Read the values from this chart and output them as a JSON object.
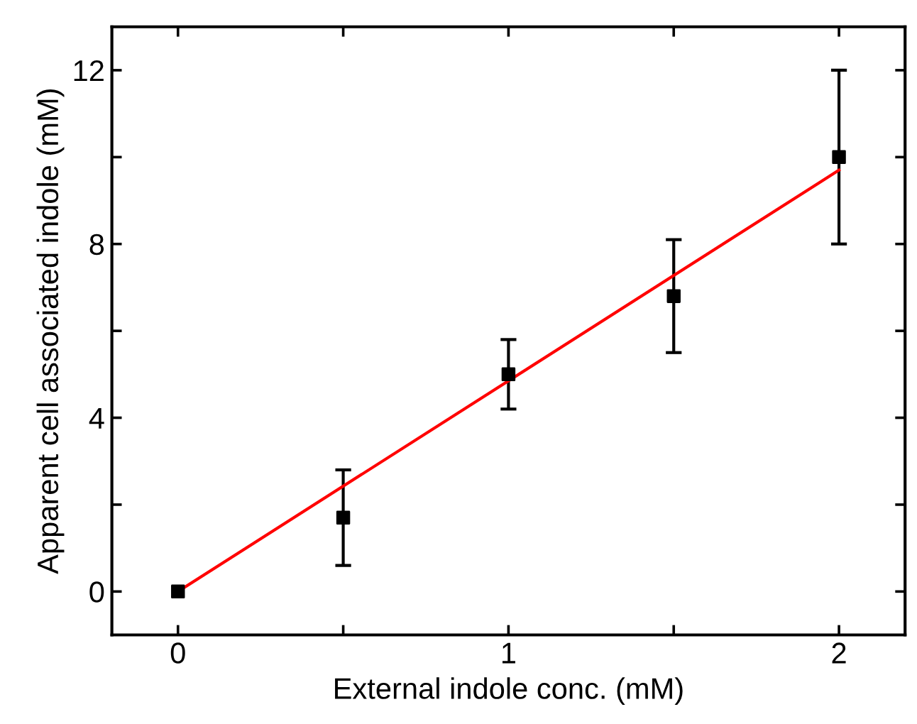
{
  "chart_data": {
    "type": "scatter",
    "xlabel": "External indole conc. (mM)",
    "ylabel": "Apparent cell associated indole (mM)",
    "xlim": [
      -0.2,
      2.2
    ],
    "ylim": [
      -1,
      13
    ],
    "xticks": [
      0,
      {
        "value": 0.5,
        "label": null
      },
      1,
      {
        "value": 1.5,
        "label": null
      },
      2
    ],
    "yticks": [
      0,
      {
        "value": 2,
        "label": null
      },
      4,
      {
        "value": 6,
        "label": null
      },
      8,
      {
        "value": 10,
        "label": null
      },
      12
    ],
    "grid": false,
    "series": [
      {
        "color": "#000000",
        "marker": "square",
        "x": [
          0,
          0.5,
          1,
          1.5,
          2
        ],
        "values": [
          0,
          1.7,
          5.0,
          6.8,
          10.0
        ],
        "errors": [
          null,
          [
            0.6,
            2.8
          ],
          [
            4.2,
            5.8
          ],
          [
            5.5,
            8.1
          ],
          [
            8,
            12
          ]
        ]
      },
      {
        "type": "line",
        "color": "#ff0000",
        "line_style": "solid",
        "marker": "none",
        "x": [
          0,
          2
        ],
        "values": [
          0,
          9.7
        ]
      }
    ]
  }
}
